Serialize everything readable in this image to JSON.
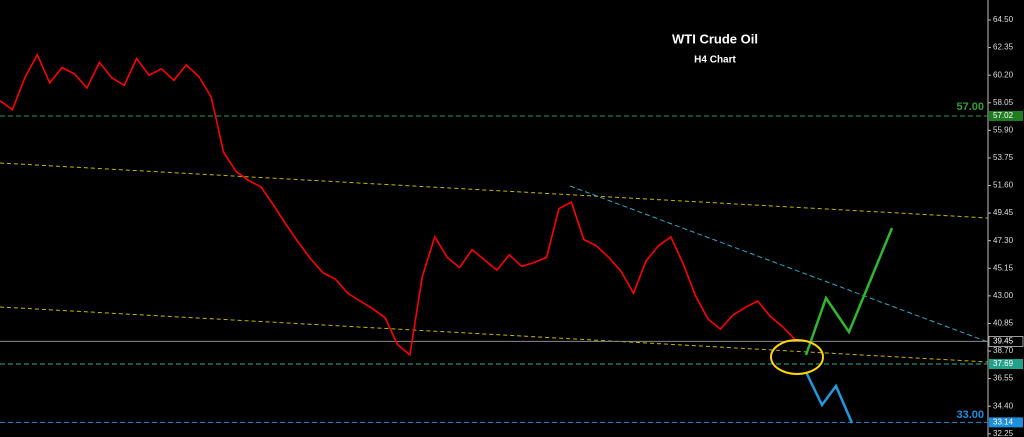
{
  "chart_data": {
    "type": "line",
    "title": "WTI Crude Oil",
    "subtitle": "H4 Chart",
    "color": "#ff0000",
    "values": [
      58.2,
      57.5,
      60.0,
      61.8,
      59.6,
      60.8,
      60.3,
      59.2,
      61.2,
      60.0,
      59.4,
      61.5,
      60.2,
      60.7,
      59.8,
      61.0,
      60.1,
      58.5,
      54.2,
      52.7,
      52.0,
      51.5,
      50.1,
      48.6,
      47.2,
      45.9,
      44.8,
      44.3,
      43.2,
      42.6,
      42.0,
      41.3,
      39.2,
      38.4,
      44.5,
      47.6,
      46.0,
      45.2,
      46.6,
      45.8,
      45.0,
      46.2,
      45.3,
      45.6,
      46.0,
      49.8,
      50.3,
      47.4,
      46.9,
      46.0,
      44.9,
      43.2,
      45.7,
      46.9,
      47.6,
      45.5,
      43.0,
      41.2,
      40.4,
      41.5,
      42.1,
      42.6,
      41.4,
      40.6,
      39.6
    ],
    "ylim": [
      32.0,
      66.06
    ],
    "yticks": [
      {
        "value": 64.5,
        "label": "64.50"
      },
      62.35,
      {
        "value": 60.2,
        "label": "60.20"
      },
      58.05,
      {
        "value": 55.9,
        "label": "55.90"
      },
      53.75,
      {
        "value": 51.6,
        "label": "51.60"
      },
      49.45,
      {
        "value": 47.3,
        "label": "47.30"
      },
      45.15,
      {
        "value": 43,
        "label": "43.00"
      },
      40.85,
      {
        "value": 38.7,
        "label": "38.70"
      },
      36.55,
      {
        "value": 34.4,
        "label": "34.40"
      },
      32.25
    ],
    "levels": [
      {
        "value": 57.02,
        "color": "#2f9e2f",
        "tag_color": "#1e7d1e",
        "dash": true,
        "note": {
          "value": 57,
          "label": "57.00"
        }
      },
      {
        "value": 39.45,
        "color": "#8a8a8a",
        "tag_color": "#000000",
        "dash": false
      },
      {
        "value": 37.69,
        "color": "#2ab09a",
        "tag_color": "#22a08a",
        "dash": true
      },
      {
        "value": 33.14,
        "color": "#1e8fe0",
        "tag_color": "#1e8fe0",
        "dash": true,
        "note": {
          "value": 33,
          "label": "33.00"
        }
      }
    ]
  }
}
